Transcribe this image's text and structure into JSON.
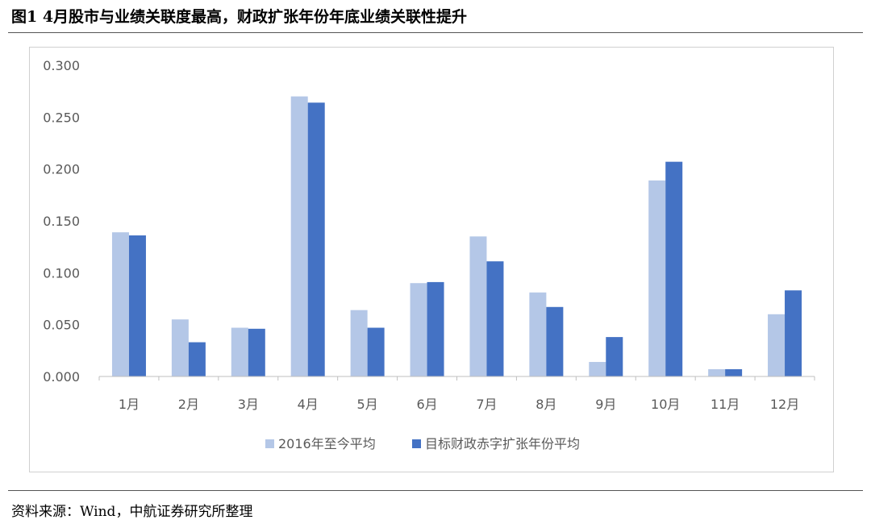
{
  "header": {
    "title": "图1  4月股市与业绩关联度最高，财政扩张年份年底业绩关联性提升"
  },
  "footer": {
    "source": "资料来源：Wind，中航证券研究所整理"
  },
  "colors": {
    "series1": "#b4c7e7",
    "series2": "#4472c4",
    "axis": "#bfbfbf",
    "tick_text": "#595959"
  },
  "chart_data": {
    "type": "bar",
    "categories": [
      "1月",
      "2月",
      "3月",
      "4月",
      "5月",
      "6月",
      "7月",
      "8月",
      "9月",
      "10月",
      "11月",
      "12月"
    ],
    "series": [
      {
        "name": "2016年至今平均",
        "values": [
          0.139,
          0.055,
          0.047,
          0.27,
          0.064,
          0.09,
          0.135,
          0.081,
          0.014,
          0.189,
          0.007,
          0.06
        ]
      },
      {
        "name": "目标财政赤字扩张年份平均",
        "values": [
          0.136,
          0.033,
          0.046,
          0.264,
          0.047,
          0.091,
          0.111,
          0.067,
          0.038,
          0.207,
          0.007,
          0.083
        ]
      }
    ],
    "ylim": [
      0,
      0.3
    ],
    "yticks": [
      "0.000",
      "0.050",
      "0.100",
      "0.150",
      "0.200",
      "0.250",
      "0.300"
    ],
    "grid": false,
    "legend_position": "bottom"
  }
}
